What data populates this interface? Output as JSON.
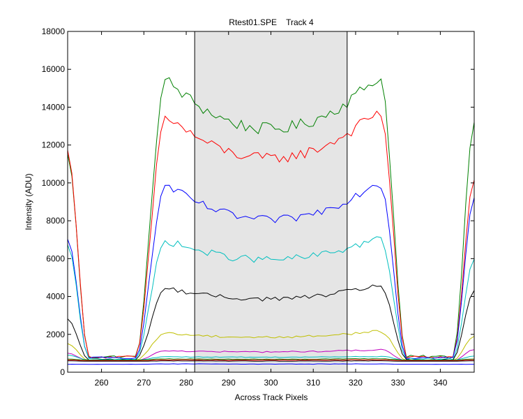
{
  "chart_data": {
    "type": "line",
    "title": "Rtest01.SPE    Track 4",
    "xlabel": "Across Track Pixels",
    "ylabel": "Intensity (ADU)",
    "xlim": [
      252,
      348
    ],
    "ylim": [
      0,
      18000
    ],
    "xticks": [
      "260",
      "270",
      "280",
      "290",
      "300",
      "310",
      "320",
      "330",
      "340"
    ],
    "yticks": [
      "0",
      "2000",
      "4000",
      "6000",
      "8000",
      "10000",
      "12000",
      "14000",
      "16000",
      "18000"
    ],
    "grid": false,
    "legend": "none",
    "shaded_region": [
      282,
      318
    ],
    "shaded_color": "#e5e5e5",
    "series": [
      {
        "color": "#008000",
        "low": 820,
        "level": 15300,
        "center_dip": 2500,
        "right_track": 15400,
        "noise": 250,
        "left_start": 11500,
        "right_end": 13200
      },
      {
        "color": "#ff0000",
        "low": 800,
        "level": 13400,
        "center_dip": 2200,
        "right_track": 13600,
        "noise": 220,
        "left_start": 11700,
        "right_end": 10200
      },
      {
        "color": "#0000ff",
        "low": 760,
        "level": 9800,
        "center_dip": 1800,
        "right_track": 9900,
        "noise": 170,
        "left_start": 7000,
        "right_end": 9200
      },
      {
        "color": "#00bfbf",
        "low": 700,
        "level": 6900,
        "center_dip": 1000,
        "right_track": 7000,
        "noise": 150,
        "left_start": 6700,
        "right_end": 6000
      },
      {
        "color": "#000000",
        "low": 650,
        "level": 4400,
        "center_dip": 600,
        "right_track": 4550,
        "noise": 90,
        "left_start": 2800,
        "right_end": 4300
      },
      {
        "color": "#bfbf00",
        "low": 620,
        "level": 2050,
        "center_dip": 250,
        "right_track": 2150,
        "noise": 50,
        "left_start": 1500,
        "right_end": 1900
      },
      {
        "color": "#bf00bf",
        "low": 600,
        "level": 1130,
        "center_dip": 80,
        "right_track": 1180,
        "noise": 30,
        "left_start": 1000,
        "right_end": 1200
      },
      {
        "color": "#00bfbf",
        "low": 640,
        "level": 820,
        "center_dip": 30,
        "right_track": 830,
        "noise": 15,
        "left_start": 900,
        "right_end": 850
      },
      {
        "color": "#008000",
        "low": 640,
        "level": 700,
        "center_dip": 20,
        "right_track": 710,
        "noise": 12,
        "left_start": 700,
        "right_end": 700
      },
      {
        "color": "#ff0000",
        "low": 610,
        "level": 650,
        "center_dip": 15,
        "right_track": 660,
        "noise": 10,
        "left_start": 650,
        "right_end": 650
      },
      {
        "color": "#000000",
        "low": 580,
        "level": 600,
        "center_dip": 10,
        "right_track": 600,
        "noise": 8,
        "left_start": 600,
        "right_end": 600
      },
      {
        "color": "#0000ff",
        "low": 420,
        "level": 440,
        "center_dip": 10,
        "right_track": 440,
        "noise": 8,
        "left_start": 420,
        "right_end": 420
      }
    ]
  }
}
